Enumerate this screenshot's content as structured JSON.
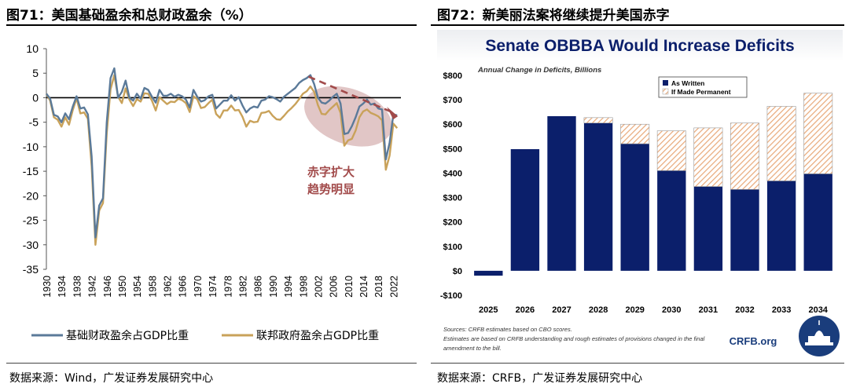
{
  "left": {
    "fig_title": "图71：美国基础盈余和总财政盈余（%）",
    "source": "数据来源：Wind，广发证券发展研究中心",
    "annotation_line1": "赤字扩大",
    "annotation_line2": "趋势明显",
    "colors": {
      "primary": "#5b7a99",
      "federal": "#c9a25a",
      "ellipse": "#d7b3b3",
      "arrow": "#a24b4b"
    },
    "chart_data": {
      "type": "line",
      "title": "",
      "xlabel": "",
      "ylabel": "",
      "ylim": [
        -35,
        10
      ],
      "yticks": [
        10,
        5,
        0,
        -5,
        -10,
        -15,
        -20,
        -25,
        -30,
        -35
      ],
      "xlim": [
        1930,
        2024
      ],
      "xticks": [
        1930,
        1934,
        1938,
        1942,
        1946,
        1950,
        1954,
        1958,
        1962,
        1966,
        1970,
        1974,
        1978,
        1982,
        1986,
        1990,
        1994,
        1998,
        2002,
        2006,
        2010,
        2014,
        2018,
        2022
      ],
      "legend_position": "bottom",
      "series": [
        {
          "name": "基础财政盈余占GDP比重",
          "x": [
            1930,
            1931,
            1932,
            1933,
            1934,
            1935,
            1936,
            1937,
            1938,
            1939,
            1940,
            1941,
            1942,
            1943,
            1944,
            1945,
            1946,
            1947,
            1948,
            1949,
            1950,
            1951,
            1952,
            1953,
            1954,
            1955,
            1956,
            1957,
            1958,
            1959,
            1960,
            1961,
            1962,
            1963,
            1964,
            1965,
            1966,
            1967,
            1968,
            1969,
            1970,
            1971,
            1972,
            1973,
            1974,
            1975,
            1976,
            1977,
            1978,
            1979,
            1980,
            1981,
            1982,
            1983,
            1984,
            1985,
            1986,
            1987,
            1988,
            1989,
            1990,
            1991,
            1992,
            1993,
            1994,
            1995,
            1996,
            1997,
            1998,
            1999,
            2000,
            2001,
            2002,
            2003,
            2004,
            2005,
            2006,
            2007,
            2008,
            2009,
            2010,
            2011,
            2012,
            2013,
            2014,
            2015,
            2016,
            2017,
            2018,
            2019,
            2020,
            2021,
            2022,
            2023
          ],
          "values": [
            0.8,
            -0.2,
            -3.5,
            -3.8,
            -5,
            -3.2,
            -4.4,
            -1.8,
            0.3,
            -2.2,
            -2.0,
            -3.4,
            -12,
            -28.5,
            -22,
            -20.5,
            -5,
            4,
            6,
            0,
            1.2,
            3.5,
            0,
            -0.6,
            0.8,
            -0.2,
            2,
            1.6,
            0.2,
            -1,
            1.6,
            0.4,
            0.4,
            0.8,
            0.2,
            0.6,
            0.3,
            -0.4,
            -2.0,
            1.6,
            0.2,
            -0.8,
            -0.5,
            0.3,
            0.6,
            -2.2,
            -1.4,
            -0.6,
            -0.6,
            0.5,
            -0.6,
            0.1,
            -1.6,
            -3.0,
            -2.2,
            -1.8,
            -2.0,
            -0.6,
            -0.4,
            0.3,
            0.1,
            -0.3,
            -0.8,
            0.2,
            0.8,
            1.4,
            2.0,
            3.0,
            3.6,
            4.0,
            4.6,
            2.8,
            0.0,
            -1.0,
            -1.2,
            -0.6,
            0.2,
            0.8,
            -1.2,
            -7.4,
            -7.2,
            -5.8,
            -4.0,
            -1.8,
            -1.2,
            -0.4,
            -1.4,
            -1.2,
            -2.2,
            -2.4,
            -12.6,
            -9.2,
            -3.4,
            -3.6
          ]
        },
        {
          "name": "联邦政府盈余占GDP比重",
          "x": [
            1930,
            1931,
            1932,
            1933,
            1934,
            1935,
            1936,
            1937,
            1938,
            1939,
            1940,
            1941,
            1942,
            1943,
            1944,
            1945,
            1946,
            1947,
            1948,
            1949,
            1950,
            1951,
            1952,
            1953,
            1954,
            1955,
            1956,
            1957,
            1958,
            1959,
            1960,
            1961,
            1962,
            1963,
            1964,
            1965,
            1966,
            1967,
            1968,
            1969,
            1970,
            1971,
            1972,
            1973,
            1974,
            1975,
            1976,
            1977,
            1978,
            1979,
            1980,
            1981,
            1982,
            1983,
            1984,
            1985,
            1986,
            1987,
            1988,
            1989,
            1990,
            1991,
            1992,
            1993,
            1994,
            1995,
            1996,
            1997,
            1998,
            1999,
            2000,
            2001,
            2002,
            2003,
            2004,
            2005,
            2006,
            2007,
            2008,
            2009,
            2010,
            2011,
            2012,
            2013,
            2014,
            2015,
            2016,
            2017,
            2018,
            2019,
            2020,
            2021,
            2022,
            2023
          ],
          "values": [
            0.8,
            -0.6,
            -4.0,
            -4.5,
            -5.9,
            -4.0,
            -5.5,
            -2.5,
            -0.1,
            -3.2,
            -3.0,
            -4.3,
            -14,
            -30,
            -23,
            -21.5,
            -7.2,
            1.7,
            4.6,
            0.2,
            -1.1,
            1.9,
            -0.4,
            -1.7,
            -0.3,
            -0.8,
            0.9,
            0.8,
            -0.6,
            -2.6,
            0.1,
            -0.6,
            -1.3,
            -0.8,
            -0.9,
            -0.2,
            -0.5,
            -1.1,
            -2.9,
            0.3,
            -0.3,
            -2.1,
            -1.9,
            -1.1,
            -0.4,
            -3.3,
            -4.1,
            -2.6,
            -2.6,
            -1.6,
            -2.6,
            -2.5,
            -3.9,
            -5.9,
            -4.7,
            -5.0,
            -4.9,
            -3.1,
            -3.0,
            -2.7,
            -3.7,
            -4.4,
            -4.5,
            -3.7,
            -2.8,
            -2.1,
            -1.3,
            -0.3,
            0.8,
            1.3,
            2.3,
            1.2,
            -1.5,
            -3.3,
            -3.4,
            -2.5,
            -1.8,
            -1.1,
            -3.1,
            -9.8,
            -8.7,
            -8.4,
            -6.7,
            -4.0,
            -2.8,
            -2.4,
            -3.1,
            -3.4,
            -3.8,
            -4.6,
            -14.7,
            -11.8,
            -5.3,
            -6.2
          ]
        }
      ]
    }
  },
  "right": {
    "fig_title": "图72：新美丽法案将继续提升美国赤字",
    "source": "数据来源：CRFB，广发证券发展研究中心",
    "banner": "Senate OBBBA Would Increase Deficits",
    "subtitle": "Annual Change in Deficits, Billions",
    "footnote_line1": "Sources: CRFB estimates based on CBO scores.",
    "footnote_line2": "Estimates are based on CRFB understanding and rough estimates of provisions changed in the final",
    "footnote_line3": "amendment to the bill.",
    "logo_text": "CRFB.org",
    "colors": {
      "navy": "#0b1f6b",
      "hatch": "#e8a878",
      "banner_top": "#eceef1",
      "logo": "#1a3d7c"
    },
    "chart_data": {
      "type": "bar",
      "title": "Senate OBBBA Would Increase Deficits",
      "subtitle": "Annual Change in Deficits, Billions",
      "xlabel": "",
      "ylabel": "",
      "ylim": [
        -100,
        800
      ],
      "yticks": [
        800,
        700,
        600,
        500,
        400,
        300,
        200,
        100,
        0,
        -100
      ],
      "ytick_labels": [
        "$800",
        "$700",
        "$600",
        "$500",
        "$400",
        "$300",
        "$200",
        "$100",
        "$0",
        "-$100"
      ],
      "stacked": true,
      "legend_position": "top-center",
      "categories": [
        "2025",
        "2026",
        "2027",
        "2028",
        "2029",
        "2030",
        "2031",
        "2032",
        "2033",
        "2034"
      ],
      "series": [
        {
          "name": "As Written",
          "values": [
            -20,
            498,
            633,
            605,
            520,
            410,
            345,
            333,
            368,
            397
          ]
        },
        {
          "name": "If Made Permanent",
          "values": [
            0,
            0,
            0,
            22,
            80,
            163,
            240,
            272,
            305,
            330
          ]
        }
      ]
    }
  }
}
